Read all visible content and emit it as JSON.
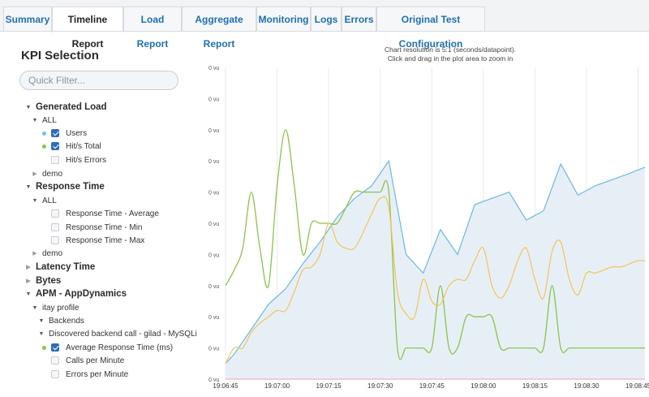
{
  "tabs": [
    {
      "label": "Summary",
      "active": false
    },
    {
      "label": "Timeline Report",
      "active": true
    },
    {
      "label": "Load Report",
      "active": false
    },
    {
      "label": "Aggregate Report",
      "active": false
    },
    {
      "label": "Monitoring",
      "active": false
    },
    {
      "label": "Logs",
      "active": false
    },
    {
      "label": "Errors",
      "active": false
    },
    {
      "label": "Original Test Configuration",
      "active": false
    }
  ],
  "kpi": {
    "title": "KPI Selection",
    "filter_placeholder": "Quick Filter...",
    "tree": [
      {
        "label": "Generated Load",
        "kind": "section",
        "expanded": true
      },
      {
        "label": "ALL",
        "kind": "group",
        "expanded": true
      },
      {
        "label": "Users",
        "kind": "item",
        "checked": true,
        "color": "#6cc3e6"
      },
      {
        "label": "Hit/s Total",
        "kind": "item",
        "checked": true,
        "color": "#8bc34a"
      },
      {
        "label": "Hit/s Errors",
        "kind": "item",
        "checked": false
      },
      {
        "label": "demo",
        "kind": "group",
        "expanded": false
      },
      {
        "label": "Response Time",
        "kind": "section",
        "expanded": true
      },
      {
        "label": "ALL",
        "kind": "group",
        "expanded": true
      },
      {
        "label": "Response Time - Average",
        "kind": "item",
        "checked": false
      },
      {
        "label": "Response Time - Min",
        "kind": "item",
        "checked": false
      },
      {
        "label": "Response Time - Max",
        "kind": "item",
        "checked": false
      },
      {
        "label": "demo",
        "kind": "group",
        "expanded": false
      },
      {
        "label": "Latency Time",
        "kind": "section",
        "expanded": false
      },
      {
        "label": "Bytes",
        "kind": "section",
        "expanded": false
      },
      {
        "label": "APM - AppDynamics",
        "kind": "section",
        "expanded": true
      },
      {
        "label": "itay profile",
        "kind": "group",
        "expanded": true
      },
      {
        "label": "Backends",
        "kind": "group",
        "expanded": true
      },
      {
        "label": "Discovered backend call - gilad - MySQLi",
        "kind": "group",
        "expanded": true
      },
      {
        "label": "Average Response Time (ms)",
        "kind": "item",
        "checked": true,
        "color": "#8bc34a"
      },
      {
        "label": "Calls per Minute",
        "kind": "item",
        "checked": false
      },
      {
        "label": "Errors per Minute",
        "kind": "item",
        "checked": false
      }
    ]
  },
  "chart_note": {
    "line1": "Chart resolution is 5:1 (seconds/datapoint).",
    "line2": "Click and drag in the plot area to zoom in"
  },
  "chart_data": {
    "type": "line",
    "y_tick_labels": [
      "0 vu",
      "0 vu",
      "0 vu",
      "0 vu",
      "0 vu",
      "0 vu",
      "0 vu",
      "0 vu",
      "0 vu",
      "0 vu",
      "0 vu"
    ],
    "x_tick_labels": [
      "19:06:45",
      "19:07:00",
      "19:07:15",
      "19:07:30",
      "19:07:45",
      "19:08:00",
      "19:08:15",
      "19:08:30",
      "19:08:45"
    ],
    "x_range": [
      "19:06:45",
      "19:08:47"
    ],
    "y_range": [
      0,
      10
    ],
    "grid": "vertical",
    "colors": {
      "users": "#6cb8e0",
      "users_fill": "#e7eff6",
      "hits": "#8bc34a",
      "avg": "#f2c45a"
    },
    "series": [
      {
        "id": "users",
        "x": [
          0,
          2.5,
          7.5,
          12.5,
          17.5,
          22.5,
          27.5,
          32.5,
          37.5,
          42.5,
          47.5,
          52.5,
          57.5,
          62.5,
          67.5,
          72.5,
          77.5,
          82.5,
          87.5,
          92.5,
          97.5,
          102.5,
          107.5,
          112.5,
          117.5,
          122
        ],
        "y": [
          0.5,
          0.8,
          1.6,
          2.4,
          2.9,
          3.7,
          4.4,
          5.2,
          5.8,
          6.2,
          7.0,
          4.0,
          3.4,
          4.8,
          4.0,
          5.6,
          5.8,
          6.0,
          5.1,
          5.4,
          6.9,
          5.9,
          6.2,
          6.4,
          6.6,
          6.8
        ]
      },
      {
        "id": "hits",
        "x": [
          0,
          2.5,
          5,
          7.5,
          10,
          12.5,
          15,
          17.5,
          20,
          22.5,
          25,
          27.5,
          30,
          32.5,
          35,
          37.5,
          40,
          42.5,
          45,
          47.5,
          50,
          52.5,
          55,
          57.5,
          60,
          62.5,
          65,
          67.5,
          70,
          72.5,
          75,
          77.5,
          80,
          82.5,
          85,
          87.5,
          90,
          92.5,
          95,
          97.5,
          100,
          102.5,
          105,
          107.5,
          110,
          112.5,
          115,
          117.5,
          120,
          122
        ],
        "y": [
          3.0,
          3.5,
          4.2,
          6.0,
          4.2,
          3.0,
          6.2,
          8.0,
          6.2,
          4.0,
          5.0,
          5.0,
          5.0,
          5.0,
          5.5,
          6.0,
          6.0,
          6.0,
          6.0,
          6.0,
          1.0,
          1.0,
          1.0,
          1.0,
          1.0,
          3.0,
          1.0,
          1.0,
          2.0,
          2.0,
          2.0,
          2.0,
          1.0,
          1.0,
          1.0,
          1.0,
          1.0,
          1.0,
          3.0,
          1.0,
          1.0,
          1.0,
          1.0,
          1.0,
          1.0,
          1.0,
          1.0,
          1.0,
          1.0,
          1.0
        ]
      },
      {
        "id": "avg",
        "x": [
          0,
          2.5,
          5,
          7.5,
          10,
          12.5,
          15,
          17.5,
          20,
          22.5,
          25,
          27.5,
          30,
          32.5,
          35,
          37.5,
          40,
          42.5,
          45,
          47.5,
          50,
          52.5,
          55,
          57.5,
          60,
          62.5,
          65,
          67.5,
          70,
          72.5,
          75,
          77.5,
          80,
          82.5,
          85,
          87.5,
          90,
          92.5,
          95,
          97.5,
          100,
          102.5,
          105,
          107.5,
          110,
          112.5,
          115,
          117.5,
          120,
          122
        ],
        "y": [
          0.5,
          1.0,
          1.0,
          1.5,
          1.8,
          2.0,
          2.2,
          2.2,
          2.8,
          3.5,
          3.6,
          4.0,
          5.0,
          4.4,
          4.2,
          4.2,
          4.7,
          5.3,
          5.8,
          5.5,
          2.8,
          2.1,
          2.0,
          3.2,
          2.5,
          2.4,
          3.0,
          3.2,
          3.2,
          3.8,
          4.2,
          3.0,
          2.6,
          3.0,
          3.8,
          4.2,
          3.2,
          2.6,
          4.1,
          4.4,
          3.2,
          2.7,
          3.4,
          3.4,
          3.5,
          3.6,
          3.6,
          3.7,
          3.8,
          3.8
        ]
      }
    ]
  }
}
